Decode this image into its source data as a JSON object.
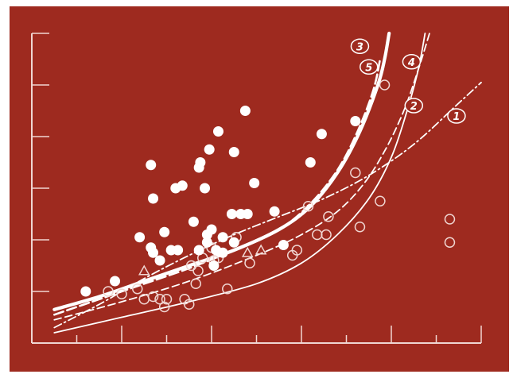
{
  "colors": {
    "background": "#9e2a1f",
    "ink": "#ffffff",
    "faded_ink": "#f0d6d2"
  },
  "chart_data": {
    "type": "scatter",
    "title": "",
    "xlabel": "",
    "ylabel": "",
    "xlim": [
      0,
      10
    ],
    "ylim": [
      0,
      6
    ],
    "grid": false,
    "tick_labels": false,
    "filled_points": [
      [
        1.2,
        1.0
      ],
      [
        1.85,
        1.2
      ],
      [
        2.4,
        2.05
      ],
      [
        2.65,
        3.45
      ],
      [
        2.7,
        2.8
      ],
      [
        2.65,
        1.85
      ],
      [
        2.7,
        1.75
      ],
      [
        2.85,
        1.6
      ],
      [
        2.95,
        2.15
      ],
      [
        3.1,
        1.8
      ],
      [
        3.25,
        1.8
      ],
      [
        3.2,
        3.0
      ],
      [
        3.35,
        3.05
      ],
      [
        3.6,
        2.35
      ],
      [
        3.72,
        1.8
      ],
      [
        3.75,
        3.5
      ],
      [
        3.72,
        3.4
      ],
      [
        3.85,
        3.0
      ],
      [
        3.9,
        1.95
      ],
      [
        3.95,
        3.75
      ],
      [
        3.9,
        2.1
      ],
      [
        4.0,
        2.2
      ],
      [
        4.1,
        1.8
      ],
      [
        4.15,
        4.1
      ],
      [
        4.05,
        1.5
      ],
      [
        4.25,
        1.75
      ],
      [
        4.25,
        2.05
      ],
      [
        4.45,
        2.5
      ],
      [
        4.5,
        1.95
      ],
      [
        4.5,
        3.7
      ],
      [
        4.65,
        2.5
      ],
      [
        4.8,
        2.5
      ],
      [
        4.75,
        4.5
      ],
      [
        4.95,
        3.1
      ],
      [
        5.4,
        2.55
      ],
      [
        5.6,
        1.9
      ],
      [
        6.2,
        3.5
      ],
      [
        6.45,
        4.05
      ],
      [
        7.2,
        4.3
      ]
    ],
    "open_points": [
      [
        1.7,
        1.0
      ],
      [
        2.0,
        0.95
      ],
      [
        2.35,
        1.05
      ],
      [
        2.5,
        0.85
      ],
      [
        2.7,
        0.9
      ],
      [
        2.85,
        0.85
      ],
      [
        2.95,
        0.7
      ],
      [
        3.0,
        0.85
      ],
      [
        3.4,
        0.85
      ],
      [
        3.5,
        0.75
      ],
      [
        3.55,
        1.5
      ],
      [
        3.65,
        1.15
      ],
      [
        3.7,
        1.4
      ],
      [
        3.8,
        1.65
      ],
      [
        4.0,
        1.85
      ],
      [
        4.05,
        1.6
      ],
      [
        4.15,
        1.65
      ],
      [
        4.35,
        1.05
      ],
      [
        4.55,
        2.05
      ],
      [
        4.85,
        1.55
      ],
      [
        5.8,
        1.7
      ],
      [
        5.9,
        1.8
      ],
      [
        6.15,
        2.65
      ],
      [
        6.35,
        2.1
      ],
      [
        6.55,
        2.1
      ],
      [
        6.6,
        2.45
      ],
      [
        7.2,
        3.3
      ],
      [
        7.3,
        2.25
      ],
      [
        7.75,
        2.75
      ],
      [
        7.85,
        5.0
      ],
      [
        9.3,
        2.4
      ],
      [
        9.3,
        1.95
      ]
    ],
    "triangle_points": [
      [
        2.5,
        1.4
      ],
      [
        4.8,
        1.75
      ],
      [
        5.1,
        1.8
      ]
    ],
    "series": [
      {
        "name": "1",
        "style": "dash-dot",
        "points": [
          [
            0.5,
            0.3
          ],
          [
            1.5,
            0.75
          ],
          [
            2.5,
            1.25
          ],
          [
            3.5,
            1.7
          ],
          [
            4.5,
            2.1
          ],
          [
            5.5,
            2.45
          ],
          [
            6.5,
            2.8
          ],
          [
            7.5,
            3.25
          ],
          [
            8.5,
            3.85
          ],
          [
            9.5,
            4.65
          ],
          [
            10.0,
            5.05
          ]
        ]
      },
      {
        "name": "2",
        "style": "dashed",
        "points": [
          [
            0.5,
            0.45
          ],
          [
            2.0,
            0.8
          ],
          [
            3.5,
            1.2
          ],
          [
            5.0,
            1.7
          ],
          [
            6.0,
            2.1
          ],
          [
            6.8,
            2.55
          ],
          [
            7.4,
            3.1
          ],
          [
            7.9,
            3.8
          ],
          [
            8.3,
            4.55
          ],
          [
            8.6,
            5.3
          ],
          [
            8.85,
            6.0
          ]
        ]
      },
      {
        "name": "3",
        "style": "thick",
        "points": [
          [
            0.5,
            0.65
          ],
          [
            1.5,
            0.9
          ],
          [
            2.5,
            1.2
          ],
          [
            3.5,
            1.5
          ],
          [
            4.5,
            1.8
          ],
          [
            5.5,
            2.2
          ],
          [
            6.2,
            2.65
          ],
          [
            6.8,
            3.3
          ],
          [
            7.3,
            4.1
          ],
          [
            7.7,
            5.0
          ],
          [
            7.85,
            5.5
          ],
          [
            7.95,
            6.0
          ]
        ]
      },
      {
        "name": "4",
        "style": "solid",
        "points": [
          [
            0.5,
            0.2
          ],
          [
            2.0,
            0.5
          ],
          [
            3.5,
            0.8
          ],
          [
            5.0,
            1.15
          ],
          [
            6.0,
            1.55
          ],
          [
            6.8,
            2.1
          ],
          [
            7.5,
            2.8
          ],
          [
            8.0,
            3.6
          ],
          [
            8.35,
            4.5
          ],
          [
            8.6,
            5.3
          ],
          [
            8.75,
            6.0
          ]
        ]
      },
      {
        "name": "5",
        "style": "dashed-thick",
        "points": [
          [
            0.5,
            0.55
          ],
          [
            1.5,
            0.85
          ],
          [
            2.5,
            1.15
          ],
          [
            3.5,
            1.45
          ],
          [
            4.5,
            1.8
          ],
          [
            5.5,
            2.2
          ],
          [
            6.2,
            2.7
          ],
          [
            6.8,
            3.35
          ],
          [
            7.25,
            4.1
          ],
          [
            7.6,
            4.9
          ],
          [
            7.75,
            5.5
          ]
        ]
      }
    ],
    "curve_labels": [
      {
        "text": "1",
        "x": 9.45,
        "y": 4.4
      },
      {
        "text": "2",
        "x": 8.5,
        "y": 4.6
      },
      {
        "text": "3",
        "x": 7.3,
        "y": 5.75
      },
      {
        "text": "4",
        "x": 8.45,
        "y": 5.45
      },
      {
        "text": "5",
        "x": 7.5,
        "y": 5.35
      }
    ]
  }
}
